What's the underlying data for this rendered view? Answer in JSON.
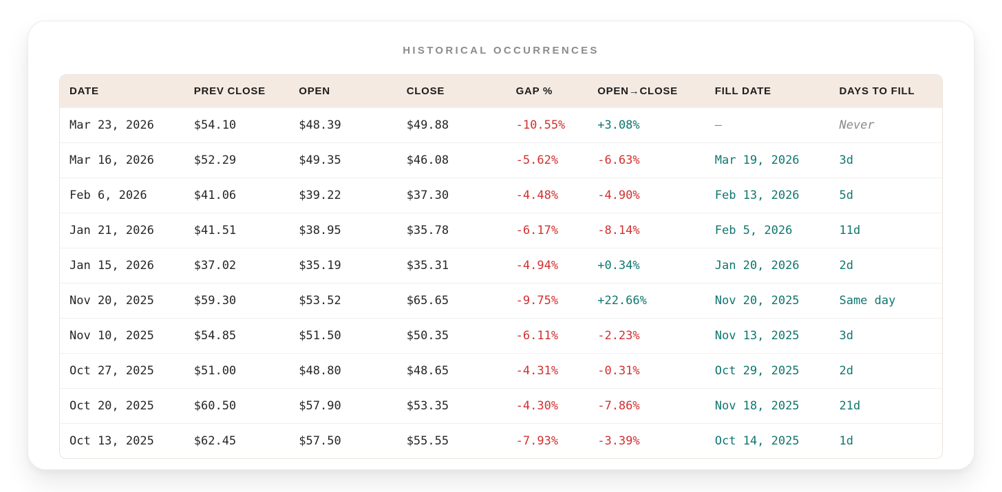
{
  "page": {
    "title": "HISTORICAL OCCURRENCES"
  },
  "colors": {
    "negative": "#d32f2f",
    "positive": "#0f766e",
    "fill_teal": "#0f766e",
    "muted": "#8a8a8a",
    "header_bg": "#f5eae2"
  },
  "table": {
    "columns": [
      {
        "key": "date",
        "label": "DATE"
      },
      {
        "key": "prev_close",
        "label": "PREV CLOSE"
      },
      {
        "key": "open",
        "label": "OPEN"
      },
      {
        "key": "close",
        "label": "CLOSE"
      },
      {
        "key": "gap_pct",
        "label": "GAP %"
      },
      {
        "key": "open_close",
        "label": "OPEN→CLOSE"
      },
      {
        "key": "fill_date",
        "label": "FILL DATE"
      },
      {
        "key": "days_to_fill",
        "label": "DAYS TO FILL"
      }
    ],
    "column_widths_pct": [
      14.1,
      11.9,
      12.2,
      12.4,
      9.25,
      13.3,
      14.1,
      12.75
    ],
    "rows": [
      {
        "date": "Mar 23, 2026",
        "prev_close": "$54.10",
        "open": "$48.39",
        "close": "$49.88",
        "gap_pct": "-10.55%",
        "open_close": "+3.08%",
        "fill_date": "—",
        "days_to_fill": "Never"
      },
      {
        "date": "Mar 16, 2026",
        "prev_close": "$52.29",
        "open": "$49.35",
        "close": "$46.08",
        "gap_pct": "-5.62%",
        "open_close": "-6.63%",
        "fill_date": "Mar 19, 2026",
        "days_to_fill": "3d"
      },
      {
        "date": "Feb 6, 2026",
        "prev_close": "$41.06",
        "open": "$39.22",
        "close": "$37.30",
        "gap_pct": "-4.48%",
        "open_close": "-4.90%",
        "fill_date": "Feb 13, 2026",
        "days_to_fill": "5d"
      },
      {
        "date": "Jan 21, 2026",
        "prev_close": "$41.51",
        "open": "$38.95",
        "close": "$35.78",
        "gap_pct": "-6.17%",
        "open_close": "-8.14%",
        "fill_date": "Feb 5, 2026",
        "days_to_fill": "11d"
      },
      {
        "date": "Jan 15, 2026",
        "prev_close": "$37.02",
        "open": "$35.19",
        "close": "$35.31",
        "gap_pct": "-4.94%",
        "open_close": "+0.34%",
        "fill_date": "Jan 20, 2026",
        "days_to_fill": "2d"
      },
      {
        "date": "Nov 20, 2025",
        "prev_close": "$59.30",
        "open": "$53.52",
        "close": "$65.65",
        "gap_pct": "-9.75%",
        "open_close": "+22.66%",
        "fill_date": "Nov 20, 2025",
        "days_to_fill": "Same day"
      },
      {
        "date": "Nov 10, 2025",
        "prev_close": "$54.85",
        "open": "$51.50",
        "close": "$50.35",
        "gap_pct": "-6.11%",
        "open_close": "-2.23%",
        "fill_date": "Nov 13, 2025",
        "days_to_fill": "3d"
      },
      {
        "date": "Oct 27, 2025",
        "prev_close": "$51.00",
        "open": "$48.80",
        "close": "$48.65",
        "gap_pct": "-4.31%",
        "open_close": "-0.31%",
        "fill_date": "Oct 29, 2025",
        "days_to_fill": "2d"
      },
      {
        "date": "Oct 20, 2025",
        "prev_close": "$60.50",
        "open": "$57.90",
        "close": "$53.35",
        "gap_pct": "-4.30%",
        "open_close": "-7.86%",
        "fill_date": "Nov 18, 2025",
        "days_to_fill": "21d"
      },
      {
        "date": "Oct 13, 2025",
        "prev_close": "$62.45",
        "open": "$57.50",
        "close": "$55.55",
        "gap_pct": "-7.93%",
        "open_close": "-3.39%",
        "fill_date": "Oct 14, 2025",
        "days_to_fill": "1d"
      }
    ]
  }
}
